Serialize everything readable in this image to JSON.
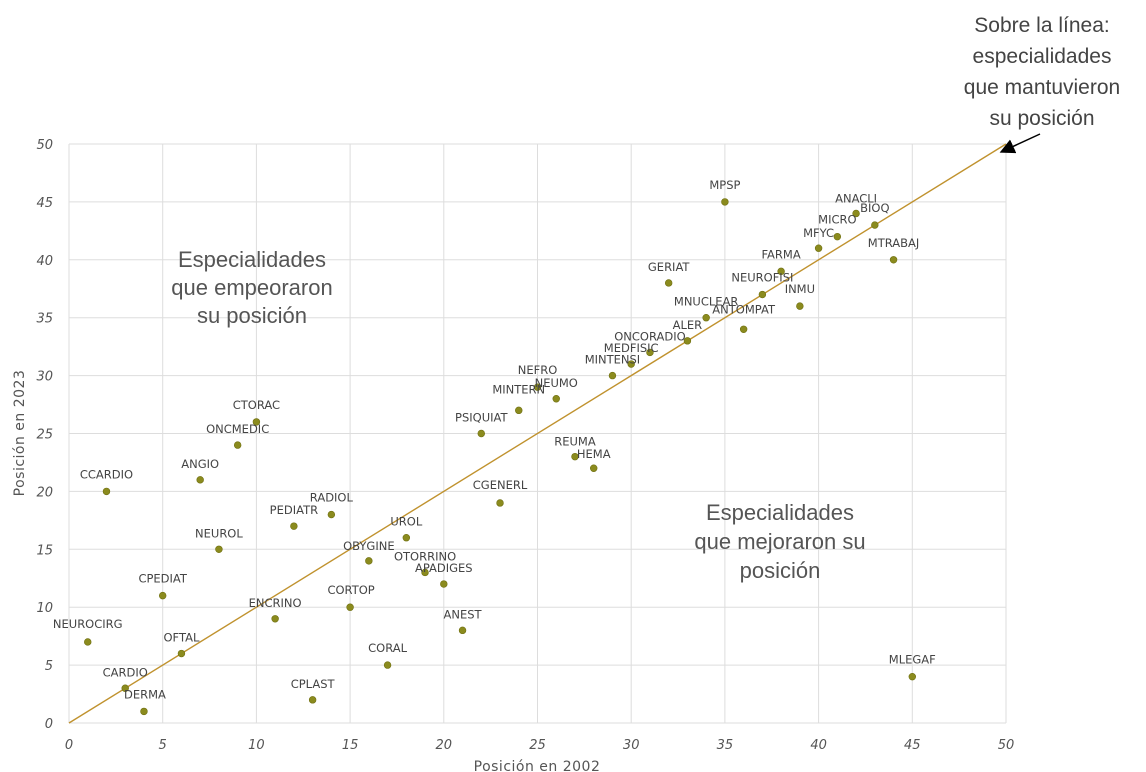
{
  "chart_data": {
    "type": "scatter",
    "xlabel": "Posición en 2002",
    "ylabel": "Posición en 2023",
    "xlim": [
      0,
      50
    ],
    "ylim": [
      0,
      50
    ],
    "xticks": [
      0,
      5,
      10,
      15,
      20,
      25,
      30,
      35,
      40,
      45,
      50
    ],
    "yticks": [
      0,
      5,
      10,
      15,
      20,
      25,
      30,
      35,
      40,
      45,
      50
    ],
    "grid": true,
    "reference_line": {
      "from": [
        0,
        0
      ],
      "to": [
        50,
        50
      ],
      "color": "#c0922e"
    },
    "point_color": "#8b8b1e",
    "points": [
      {
        "label": "NEUROCIRG",
        "x": 1,
        "y": 7
      },
      {
        "label": "CCARDIO",
        "x": 2,
        "y": 20
      },
      {
        "label": "CARDIO",
        "x": 3,
        "y": 3
      },
      {
        "label": "DERMA",
        "x": 4,
        "y": 1
      },
      {
        "label": "CPEDIAT",
        "x": 5,
        "y": 11
      },
      {
        "label": "OFTAL",
        "x": 6,
        "y": 6
      },
      {
        "label": "ANGIO",
        "x": 7,
        "y": 21
      },
      {
        "label": "NEUROL",
        "x": 8,
        "y": 15
      },
      {
        "label": "ONCMEDIC",
        "x": 9,
        "y": 24
      },
      {
        "label": "CTORAC",
        "x": 10,
        "y": 26
      },
      {
        "label": "ENCRINO",
        "x": 11,
        "y": 9
      },
      {
        "label": "PEDIATR",
        "x": 12,
        "y": 17
      },
      {
        "label": "CPLAST",
        "x": 13,
        "y": 2
      },
      {
        "label": "RADIOL",
        "x": 14,
        "y": 18
      },
      {
        "label": "CORTOP",
        "x": 15,
        "y": 10
      },
      {
        "label": "OBYGINE",
        "x": 16,
        "y": 14
      },
      {
        "label": "CORAL",
        "x": 17,
        "y": 5
      },
      {
        "label": "UROL",
        "x": 18,
        "y": 16
      },
      {
        "label": "OTORRINO",
        "x": 19,
        "y": 13
      },
      {
        "label": "APADIGES",
        "x": 20,
        "y": 12
      },
      {
        "label": "ANEST",
        "x": 21,
        "y": 8
      },
      {
        "label": "PSIQUIAT",
        "x": 22,
        "y": 25
      },
      {
        "label": "CGENERL",
        "x": 23,
        "y": 19
      },
      {
        "label": "MINTERN",
        "x": 24,
        "y": 27
      },
      {
        "label": "NEFRO",
        "x": 25,
        "y": 29
      },
      {
        "label": "NEUMO",
        "x": 26,
        "y": 28
      },
      {
        "label": "REUMA",
        "x": 27,
        "y": 23
      },
      {
        "label": "HEMA",
        "x": 28,
        "y": 22
      },
      {
        "label": "MINTENSI",
        "x": 29,
        "y": 30
      },
      {
        "label": "MEDFISIC",
        "x": 30,
        "y": 31
      },
      {
        "label": "ONCORADIO",
        "x": 31,
        "y": 32
      },
      {
        "label": "GERIAT",
        "x": 32,
        "y": 38
      },
      {
        "label": "ALER",
        "x": 33,
        "y": 33
      },
      {
        "label": "MNUCLEAR",
        "x": 34,
        "y": 35
      },
      {
        "label": "MPSP",
        "x": 35,
        "y": 45
      },
      {
        "label": "ANTOMPAT",
        "x": 36,
        "y": 34
      },
      {
        "label": "NEUROFISI",
        "x": 37,
        "y": 37
      },
      {
        "label": "FARMA",
        "x": 38,
        "y": 39
      },
      {
        "label": "INMU",
        "x": 39,
        "y": 36
      },
      {
        "label": "MFYC",
        "x": 40,
        "y": 41
      },
      {
        "label": "MICRO",
        "x": 41,
        "y": 42
      },
      {
        "label": "ANACLI",
        "x": 42,
        "y": 44
      },
      {
        "label": "BIOQ",
        "x": 43,
        "y": 43
      },
      {
        "label": "MTRABAJ",
        "x": 44,
        "y": 40
      },
      {
        "label": "MLEGAF",
        "x": 45,
        "y": 4
      }
    ],
    "annotations": {
      "upper_region": [
        "Especialidades",
        "que empeoraron",
        "su posición"
      ],
      "lower_region": [
        "Especialidades",
        "que mejoraron su",
        "posición"
      ],
      "line_note": [
        "Sobre la línea:",
        "especialidades",
        "que mantuvieron",
        "su posición"
      ]
    }
  }
}
